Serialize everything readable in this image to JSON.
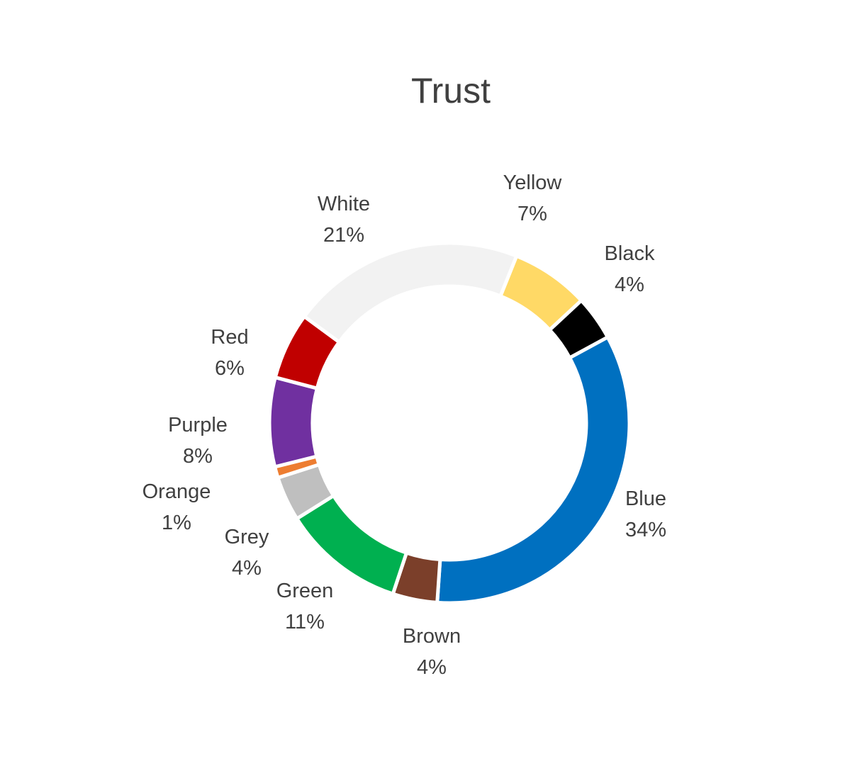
{
  "chart_data": {
    "type": "pie",
    "subtype": "donut",
    "title": "Trust",
    "legend": "none",
    "slices": [
      {
        "name": "Blue",
        "value": 34,
        "label": "34%",
        "color": "#0070C0"
      },
      {
        "name": "Brown",
        "value": 4,
        "label": "4%",
        "color": "#7B3F2A"
      },
      {
        "name": "Green",
        "value": 11,
        "label": "11%",
        "color": "#00B050"
      },
      {
        "name": "Grey",
        "value": 4,
        "label": "4%",
        "color": "#BFBFBF"
      },
      {
        "name": "Orange",
        "value": 1,
        "label": "1%",
        "color": "#ED7D31"
      },
      {
        "name": "Purple",
        "value": 8,
        "label": "8%",
        "color": "#7030A0"
      },
      {
        "name": "Red",
        "value": 6,
        "label": "6%",
        "color": "#C00000"
      },
      {
        "name": "White",
        "value": 21,
        "label": "21%",
        "color": "#F2F2F2"
      },
      {
        "name": "Yellow",
        "value": 7,
        "label": "7%",
        "color": "#FFD966"
      },
      {
        "name": "Black",
        "value": 4,
        "label": "4%",
        "color": "#000000"
      }
    ]
  }
}
